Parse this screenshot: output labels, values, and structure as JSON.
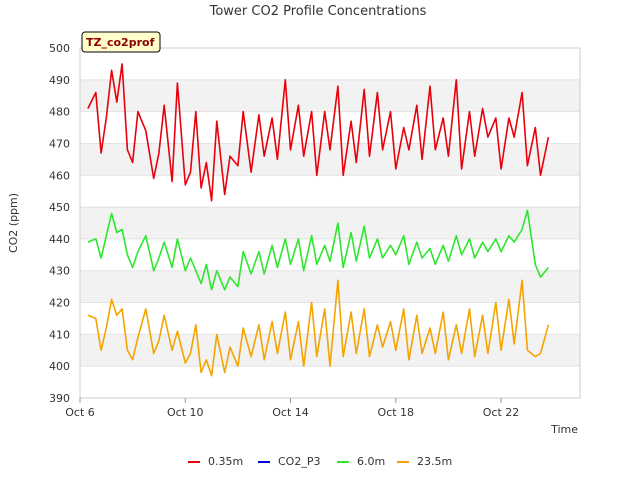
{
  "chart_data": {
    "type": "line",
    "title": "Tower CO2 Profile Concentrations",
    "badge": "TZ_co2prof",
    "xlabel": "Time",
    "ylabel": "CO2 (ppm)",
    "xlim": [
      6,
      25
    ],
    "ylim": [
      390,
      500
    ],
    "yticks": [
      390,
      400,
      410,
      420,
      430,
      440,
      450,
      460,
      470,
      480,
      490,
      500
    ],
    "xticks": [
      {
        "value": 6,
        "label": "Oct 6"
      },
      {
        "value": 10,
        "label": "Oct 10"
      },
      {
        "value": 14,
        "label": "Oct 14"
      },
      {
        "value": 18,
        "label": "Oct 18"
      },
      {
        "value": 22,
        "label": "Oct 22"
      }
    ],
    "series": [
      {
        "name": "0.35m",
        "color": "#e8000b",
        "x": [
          6.3,
          6.6,
          6.8,
          7.0,
          7.2,
          7.4,
          7.6,
          7.8,
          8.0,
          8.2,
          8.5,
          8.8,
          9.0,
          9.2,
          9.5,
          9.7,
          10.0,
          10.2,
          10.4,
          10.6,
          10.8,
          11.0,
          11.2,
          11.5,
          11.7,
          12.0,
          12.2,
          12.5,
          12.8,
          13.0,
          13.3,
          13.5,
          13.8,
          14.0,
          14.3,
          14.5,
          14.8,
          15.0,
          15.3,
          15.5,
          15.8,
          16.0,
          16.3,
          16.5,
          16.8,
          17.0,
          17.3,
          17.5,
          17.8,
          18.0,
          18.3,
          18.5,
          18.8,
          19.0,
          19.3,
          19.5,
          19.8,
          20.0,
          20.3,
          20.5,
          20.8,
          21.0,
          21.3,
          21.5,
          21.8,
          22.0,
          22.3,
          22.5,
          22.8,
          23.0,
          23.3,
          23.5,
          23.8
        ],
        "values": [
          481,
          486,
          467,
          478,
          493,
          483,
          495,
          468,
          464,
          480,
          474,
          459,
          467,
          482,
          458,
          489,
          457,
          461,
          480,
          456,
          464,
          452,
          477,
          454,
          466,
          463,
          480,
          461,
          479,
          466,
          478,
          465,
          490,
          468,
          482,
          466,
          480,
          460,
          480,
          468,
          488,
          460,
          477,
          464,
          487,
          466,
          486,
          468,
          480,
          462,
          475,
          468,
          482,
          465,
          488,
          468,
          478,
          466,
          490,
          462,
          480,
          466,
          481,
          472,
          478,
          462,
          478,
          472,
          486,
          463,
          475,
          460,
          472
        ]
      },
      {
        "name": "CO2_P3",
        "color": "#0000cc",
        "x": [],
        "values": []
      },
      {
        "name": "6.0m",
        "color": "#2ee62e",
        "x": [
          6.3,
          6.6,
          6.8,
          7.0,
          7.2,
          7.4,
          7.6,
          7.8,
          8.0,
          8.2,
          8.5,
          8.8,
          9.0,
          9.2,
          9.5,
          9.7,
          10.0,
          10.2,
          10.4,
          10.6,
          10.8,
          11.0,
          11.2,
          11.5,
          11.7,
          12.0,
          12.2,
          12.5,
          12.8,
          13.0,
          13.3,
          13.5,
          13.8,
          14.0,
          14.3,
          14.5,
          14.8,
          15.0,
          15.3,
          15.5,
          15.8,
          16.0,
          16.3,
          16.5,
          16.8,
          17.0,
          17.3,
          17.5,
          17.8,
          18.0,
          18.3,
          18.5,
          18.8,
          19.0,
          19.3,
          19.5,
          19.8,
          20.0,
          20.3,
          20.5,
          20.8,
          21.0,
          21.3,
          21.5,
          21.8,
          22.0,
          22.3,
          22.5,
          22.8,
          23.0,
          23.3,
          23.5,
          23.8
        ],
        "values": [
          439,
          440,
          434,
          441,
          448,
          442,
          443,
          435,
          431,
          436,
          441,
          430,
          434,
          439,
          431,
          440,
          430,
          434,
          430,
          426,
          432,
          424,
          430,
          424,
          428,
          425,
          436,
          429,
          436,
          429,
          438,
          431,
          440,
          432,
          440,
          430,
          441,
          432,
          438,
          433,
          445,
          431,
          442,
          433,
          444,
          434,
          440,
          434,
          438,
          435,
          441,
          432,
          439,
          434,
          437,
          432,
          438,
          433,
          441,
          435,
          440,
          434,
          439,
          436,
          440,
          436,
          441,
          439,
          443,
          449,
          432,
          428,
          431
        ]
      },
      {
        "name": "23.5m",
        "color": "#f5a300",
        "x": [
          6.3,
          6.6,
          6.8,
          7.0,
          7.2,
          7.4,
          7.6,
          7.8,
          8.0,
          8.2,
          8.5,
          8.8,
          9.0,
          9.2,
          9.5,
          9.7,
          10.0,
          10.2,
          10.4,
          10.6,
          10.8,
          11.0,
          11.2,
          11.5,
          11.7,
          12.0,
          12.2,
          12.5,
          12.8,
          13.0,
          13.3,
          13.5,
          13.8,
          14.0,
          14.3,
          14.5,
          14.8,
          15.0,
          15.3,
          15.5,
          15.8,
          16.0,
          16.3,
          16.5,
          16.8,
          17.0,
          17.3,
          17.5,
          17.8,
          18.0,
          18.3,
          18.5,
          18.8,
          19.0,
          19.3,
          19.5,
          19.8,
          20.0,
          20.3,
          20.5,
          20.8,
          21.0,
          21.3,
          21.5,
          21.8,
          22.0,
          22.3,
          22.5,
          22.8,
          23.0,
          23.3,
          23.5,
          23.8
        ],
        "values": [
          416,
          415,
          405,
          412,
          421,
          416,
          418,
          405,
          402,
          409,
          418,
          404,
          408,
          416,
          405,
          411,
          401,
          404,
          413,
          398,
          402,
          397,
          410,
          398,
          406,
          400,
          412,
          403,
          413,
          402,
          414,
          404,
          417,
          402,
          414,
          400,
          420,
          403,
          418,
          400,
          427,
          403,
          417,
          404,
          418,
          403,
          413,
          406,
          414,
          405,
          418,
          402,
          416,
          404,
          412,
          404,
          417,
          402,
          413,
          404,
          418,
          403,
          416,
          404,
          420,
          405,
          421,
          407,
          427,
          405,
          403,
          404,
          413
        ]
      }
    ]
  }
}
